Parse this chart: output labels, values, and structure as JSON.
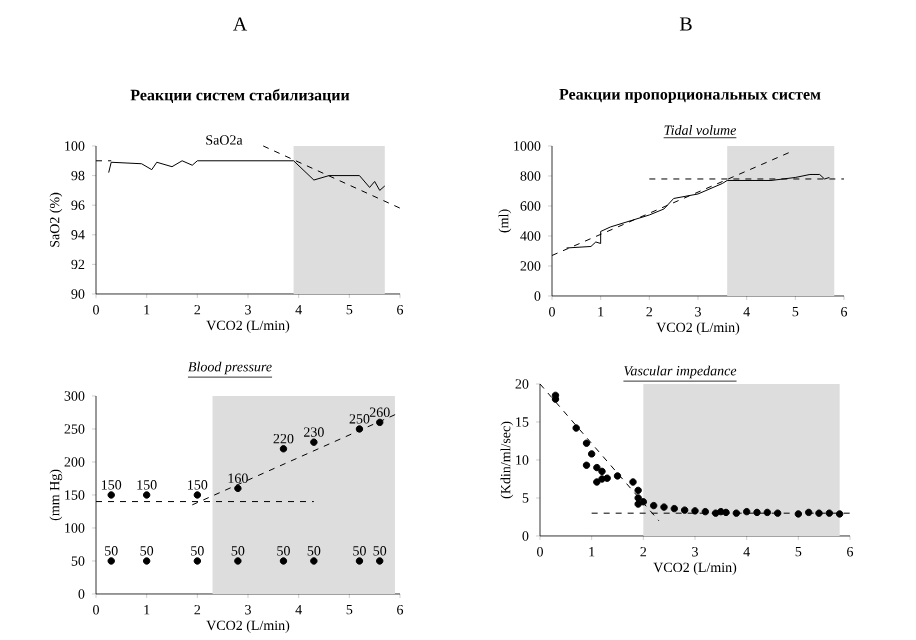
{
  "chart_data": [
    {
      "type": "line",
      "title": "Реакции систем стабилизации",
      "xlabel": "VCO2 (L/min)",
      "ylabel": "SaO2 (%)",
      "annotations": [
        "A",
        "SaO2a"
      ],
      "xlim": [
        0,
        6
      ],
      "xticks": [
        0,
        1,
        2,
        3,
        4,
        5,
        6
      ],
      "ylim": [
        90,
        100
      ],
      "yticks": [
        90,
        92,
        94,
        96,
        98,
        100
      ],
      "bands": [
        {
          "axis": "x",
          "from": 3.9,
          "to": 5.7,
          "color": "#dddddd"
        }
      ],
      "series": [
        {
          "color": "#000000",
          "marker": "none",
          "line_style": "solid",
          "x": [
            0.25,
            0.3,
            0.9,
            1.1,
            1.2,
            1.5,
            1.7,
            1.9,
            2.0,
            3.9,
            4.3,
            4.6,
            5.2,
            5.4,
            5.5,
            5.6,
            5.7
          ],
          "values": [
            98.2,
            98.9,
            98.8,
            98.4,
            98.9,
            98.6,
            99,
            98.7,
            99,
            99,
            97.7,
            98,
            98,
            97.2,
            97.6,
            97,
            97.3
          ]
        },
        {
          "type": "line",
          "color": "#000000",
          "marker": "none",
          "line_style": "dashed",
          "x": [
            0,
            0.3
          ],
          "values": [
            99,
            99
          ]
        },
        {
          "type": "line",
          "color": "#000000",
          "marker": "none",
          "line_style": "dashed",
          "x": [
            3.3,
            6
          ],
          "values": [
            100,
            95.8
          ]
        }
      ]
    },
    {
      "type": "scatter",
      "subtitle": "Blood pressure",
      "xlabel": "VCO2 (L/min)",
      "ylabel": "(mm Hg)",
      "xlim": [
        0,
        6
      ],
      "xticks": [
        0,
        1,
        2,
        3,
        4,
        5,
        6
      ],
      "ylim": [
        0,
        300
      ],
      "yticks": [
        0,
        50,
        100,
        150,
        200,
        250,
        300
      ],
      "bands": [
        {
          "axis": "x",
          "from": 2.3,
          "to": 5.9,
          "color": "#dddddd"
        }
      ],
      "series": [
        {
          "color": "#000000",
          "marker": "circle",
          "x": [
            0.3,
            1,
            2,
            2.8,
            3.7,
            4.3,
            5.2,
            5.6
          ],
          "values": [
            150,
            150,
            150,
            160,
            220,
            230,
            250,
            260
          ],
          "value_labels": [
            "150",
            "150",
            "150",
            "160",
            "220",
            "230",
            "250",
            "260"
          ]
        },
        {
          "color": "#000000",
          "marker": "circle",
          "x": [
            0.3,
            1,
            2,
            2.8,
            3.7,
            4.3,
            5.2,
            5.6
          ],
          "values": [
            50,
            50,
            50,
            50,
            50,
            50,
            50,
            50
          ],
          "value_labels": [
            "50",
            "50",
            "50",
            "50",
            "50",
            "50",
            "50",
            "50"
          ]
        },
        {
          "type": "line",
          "color": "#000000",
          "marker": "none",
          "line_style": "dashed",
          "x": [
            0,
            4.3
          ],
          "values": [
            140,
            140
          ]
        },
        {
          "type": "line",
          "color": "#000000",
          "marker": "none",
          "line_style": "dashed",
          "x": [
            1.9,
            6
          ],
          "values": [
            135,
            275
          ]
        }
      ]
    },
    {
      "type": "line",
      "title": "Реакции пропорциональных систем",
      "subtitle": "Tidal volume",
      "xlabel": "VCO2  (L/min)",
      "ylabel": "(ml)",
      "annotations": [
        "B"
      ],
      "xlim": [
        0,
        6
      ],
      "xticks": [
        0,
        1,
        2,
        3,
        4,
        5,
        6
      ],
      "ylim": [
        0,
        1000
      ],
      "yticks": [
        0,
        200,
        400,
        600,
        800,
        1000
      ],
      "bands": [
        {
          "axis": "x",
          "from": 3.6,
          "to": 5.8,
          "color": "#dddddd"
        }
      ],
      "series": [
        {
          "color": "#000000",
          "marker": "none",
          "line_style": "solid",
          "x": [
            0.3,
            0.8,
            0.9,
            1.0,
            1.0,
            1.2,
            1.5,
            2.0,
            2.3,
            2.5,
            3.0,
            3.5,
            3.6,
            4.5,
            5.0,
            5.3,
            5.5,
            5.6,
            5.7
          ],
          "values": [
            320,
            330,
            360,
            350,
            430,
            460,
            490,
            540,
            580,
            650,
            680,
            750,
            770,
            770,
            790,
            810,
            810,
            780,
            790
          ]
        },
        {
          "type": "line",
          "color": "#000000",
          "marker": "none",
          "line_style": "dashed",
          "x": [
            0,
            4.9
          ],
          "values": [
            270,
            960
          ]
        },
        {
          "type": "line",
          "color": "#000000",
          "marker": "none",
          "line_style": "dashed",
          "x": [
            2,
            6
          ],
          "values": [
            780,
            780
          ]
        }
      ]
    },
    {
      "type": "scatter",
      "subtitle": "Vascular impedance",
      "xlabel": "VCO2  (L/min)",
      "ylabel": "(Kdin/ml/sec)",
      "xlim": [
        0,
        6
      ],
      "xticks": [
        0,
        1,
        2,
        3,
        4,
        5,
        6
      ],
      "ylim": [
        0,
        20
      ],
      "yticks": [
        0,
        5,
        10,
        15,
        20
      ],
      "bands": [
        {
          "axis": "x",
          "from": 2,
          "to": 5.8,
          "color": "#dddddd"
        }
      ],
      "series": [
        {
          "color": "#000000",
          "marker": "circle",
          "x": [
            0.3,
            0.3,
            0.7,
            0.9,
            1.0,
            0.9,
            1.1,
            1.1,
            1.2,
            1.2,
            1.3,
            1.5,
            1.8,
            1.9,
            1.9,
            1.9,
            2.0,
            2.2,
            2.4,
            2.6,
            2.8,
            3.0,
            3.2,
            3.4,
            3.5,
            3.6,
            3.8,
            4.0,
            4.2,
            4.4,
            4.6,
            5.0,
            5.2,
            5.4,
            5.6,
            5.8
          ],
          "values": [
            18.5,
            18,
            14.2,
            12.2,
            10.8,
            9.3,
            9,
            7.1,
            8.5,
            7.5,
            7.6,
            7.9,
            7.1,
            6,
            5,
            4.2,
            4.5,
            4,
            3.8,
            3.6,
            3.4,
            3.3,
            3.2,
            3,
            3.2,
            3.1,
            3,
            3.2,
            3.1,
            3.1,
            3,
            2.9,
            3.1,
            3,
            3,
            2.9
          ]
        },
        {
          "type": "line",
          "color": "#000000",
          "marker": "none",
          "line_style": "dashed",
          "x": [
            0,
            2.3
          ],
          "values": [
            20,
            2
          ]
        },
        {
          "type": "line",
          "color": "#000000",
          "marker": "none",
          "line_style": "dashed",
          "x": [
            1,
            6
          ],
          "values": [
            3,
            3
          ]
        }
      ]
    }
  ]
}
